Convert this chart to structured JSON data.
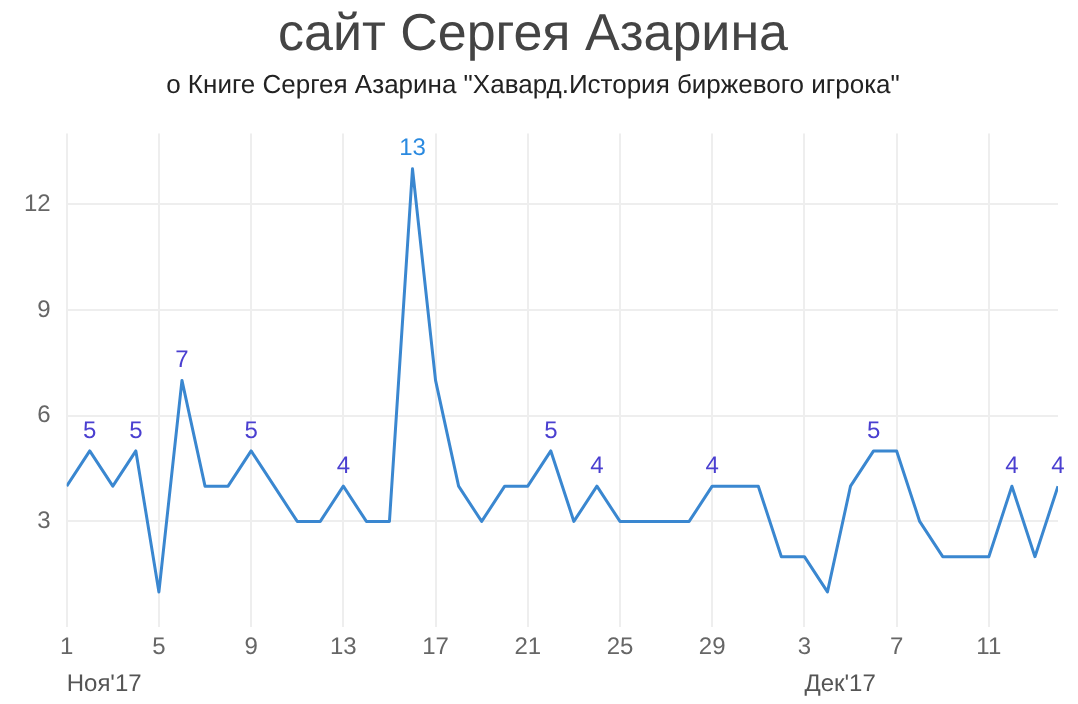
{
  "chart_data": {
    "type": "line",
    "title": "сайт Сергея Азарина",
    "subtitle": "о Книге Сергея Азарина \"Хавард.История биржевого игрока\"",
    "x": [
      "2017-11-01",
      "2017-11-02",
      "2017-11-03",
      "2017-11-04",
      "2017-11-05",
      "2017-11-06",
      "2017-11-07",
      "2017-11-08",
      "2017-11-09",
      "2017-11-10",
      "2017-11-11",
      "2017-11-12",
      "2017-11-13",
      "2017-11-14",
      "2017-11-15",
      "2017-11-16",
      "2017-11-17",
      "2017-11-18",
      "2017-11-19",
      "2017-11-20",
      "2017-11-21",
      "2017-11-22",
      "2017-11-23",
      "2017-11-24",
      "2017-11-25",
      "2017-11-26",
      "2017-11-27",
      "2017-11-28",
      "2017-11-29",
      "2017-11-30",
      "2017-12-01",
      "2017-12-02",
      "2017-12-03",
      "2017-12-04",
      "2017-12-05",
      "2017-12-06",
      "2017-12-07",
      "2017-12-08",
      "2017-12-09",
      "2017-12-10",
      "2017-12-11",
      "2017-12-12",
      "2017-12-13",
      "2017-12-14"
    ],
    "values": [
      4,
      5,
      4,
      5,
      1,
      7,
      4,
      4,
      5,
      4,
      3,
      3,
      4,
      3,
      3,
      13,
      7,
      4,
      3,
      4,
      4,
      5,
      3,
      4,
      3,
      3,
      3,
      3,
      4,
      4,
      4,
      2,
      2,
      1,
      4,
      5,
      5,
      3,
      2,
      2,
      2,
      4,
      2,
      4
    ],
    "value_labels": [
      null,
      "5",
      null,
      "5",
      null,
      "7",
      null,
      null,
      "5",
      null,
      null,
      null,
      "4",
      null,
      null,
      "13",
      null,
      null,
      null,
      null,
      null,
      "5",
      null,
      "4",
      null,
      null,
      null,
      null,
      "4",
      null,
      null,
      null,
      null,
      null,
      null,
      "5",
      null,
      null,
      null,
      null,
      null,
      "4",
      null,
      "4"
    ],
    "color": "#3a87d0",
    "xlim": [
      "2017-11-01",
      "2017-12-14"
    ],
    "xticks": [
      {
        "value": "2017-11-01",
        "label": "1"
      },
      {
        "value": "2017-11-05",
        "label": "5"
      },
      {
        "value": "2017-11-09",
        "label": "9"
      },
      {
        "value": "2017-11-13",
        "label": "13"
      },
      {
        "value": "2017-11-17",
        "label": "17"
      },
      {
        "value": "2017-11-21",
        "label": "21"
      },
      {
        "value": "2017-11-25",
        "label": "25"
      },
      {
        "value": "2017-11-29",
        "label": "29"
      },
      {
        "value": "2017-12-03",
        "label": "3"
      },
      {
        "value": "2017-12-07",
        "label": "7"
      },
      {
        "value": "2017-12-11",
        "label": "11"
      }
    ],
    "ylim": [
      0,
      14
    ],
    "yticks": [
      3,
      6,
      9,
      12
    ],
    "grid": true,
    "marker": "none",
    "annotations": [
      "Ноя'17",
      "Дек'17"
    ]
  }
}
